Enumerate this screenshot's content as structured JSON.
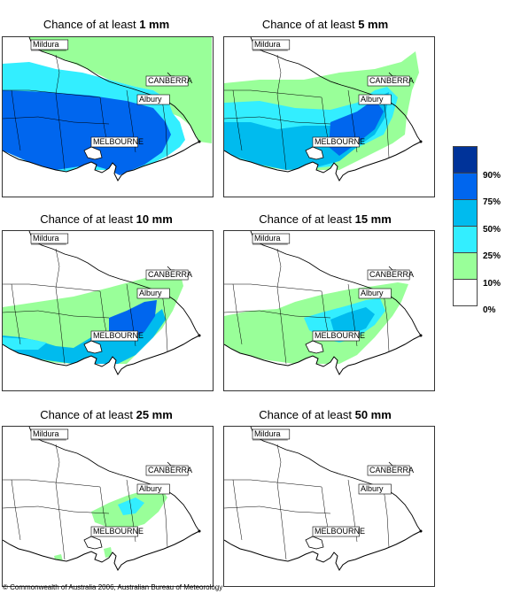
{
  "panels": [
    {
      "prefix": "Chance of at least ",
      "amount": "1 mm"
    },
    {
      "prefix": "Chance of at least ",
      "amount": "5 mm"
    },
    {
      "prefix": "Chance of at least ",
      "amount": "10 mm"
    },
    {
      "prefix": "Chance of at least ",
      "amount": "15 mm"
    },
    {
      "prefix": "Chance of at least ",
      "amount": "25 mm"
    },
    {
      "prefix": "Chance of at least ",
      "amount": "50 mm"
    }
  ],
  "places": {
    "mildura": "Mildura",
    "canberra": "CANBERRA",
    "albury": "Albury",
    "melbourne": "MELBOURNE"
  },
  "legend": {
    "colors": [
      "#003399",
      "#0066ee",
      "#00bbee",
      "#33eeff",
      "#99ff99",
      "#ffffff"
    ],
    "ticks": [
      "90%",
      "75%",
      "50%",
      "25%",
      "10%",
      "0%"
    ]
  },
  "colors": {
    "land": "#ffffff",
    "sea": "#ffffff",
    "border": "#000000"
  },
  "footer": "© Commonwealth of Australia 2006, Australian Bureau of Meteorology"
}
